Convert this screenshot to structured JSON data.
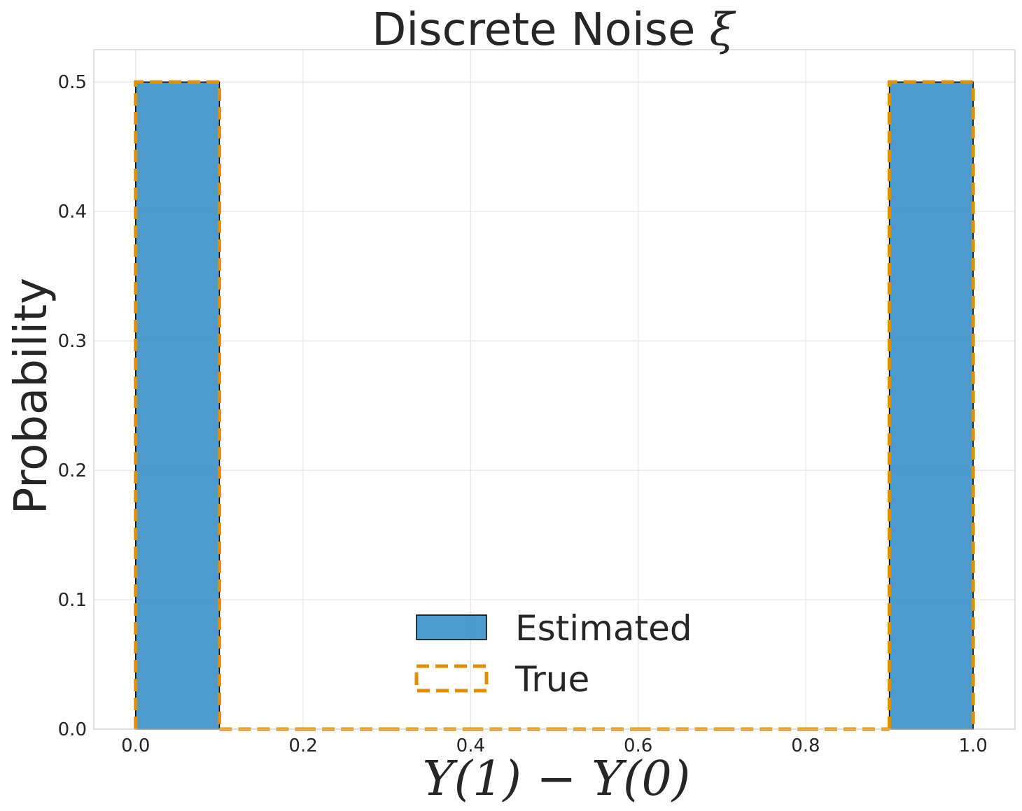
{
  "chart_data": {
    "type": "bar",
    "title": "Discrete Noise",
    "title_symbol": "ξ",
    "xlabel": "Y(1) − Y(0)",
    "ylabel": "Probability",
    "xlim": [
      -0.05,
      1.05
    ],
    "ylim": [
      0,
      0.525
    ],
    "x_ticks": [
      0.0,
      0.2,
      0.4,
      0.6,
      0.8,
      1.0
    ],
    "x_tick_labels": [
      "0.0",
      "0.2",
      "0.4",
      "0.6",
      "0.8",
      "1.0"
    ],
    "y_ticks": [
      0.0,
      0.1,
      0.2,
      0.3,
      0.4,
      0.5
    ],
    "y_tick_labels": [
      "0.0",
      "0.1",
      "0.2",
      "0.3",
      "0.4",
      "0.5"
    ],
    "grid": true,
    "legend_position": "lower-center",
    "bin_edges": [
      0.0,
      0.1,
      0.2,
      0.3,
      0.4,
      0.5,
      0.6,
      0.7,
      0.8,
      0.9,
      1.0
    ],
    "series": [
      {
        "name": "Estimated",
        "style": "filled",
        "color": "#3a8fc6",
        "edge_color": "#000000",
        "values": [
          0.5,
          0,
          0,
          0,
          0,
          0,
          0,
          0,
          0,
          0.5
        ]
      },
      {
        "name": "True",
        "style": "dashed-outline",
        "color": "#de8f05",
        "values": [
          0.5,
          0,
          0,
          0,
          0,
          0,
          0,
          0,
          0,
          0.5
        ]
      }
    ]
  }
}
